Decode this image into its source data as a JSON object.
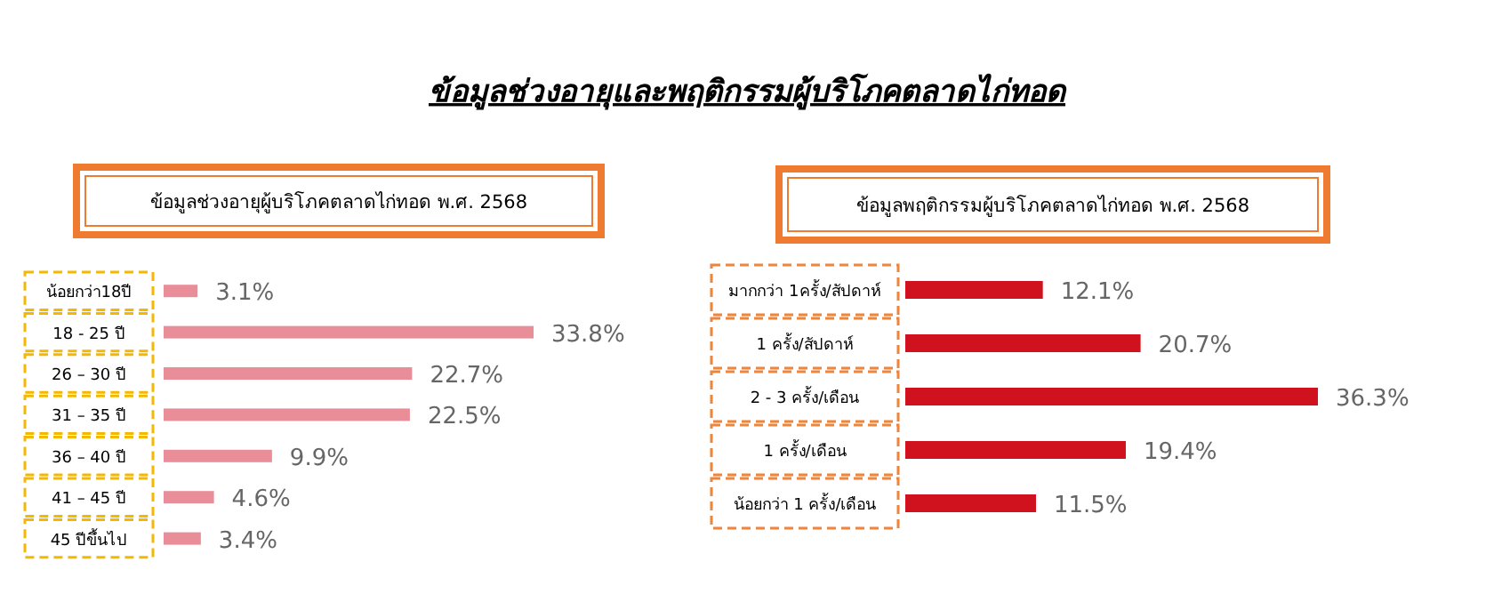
{
  "chart_data": [
    {
      "type": "other",
      "title": "ข้อมูลช่วงอายุและพฤติกรรมผู้บริโภคตลาดไก่ทอด"
    },
    {
      "type": "bar",
      "orientation": "horizontal",
      "title": "ข้อมูลช่วงอายุผู้บริโภคตลาดไก่ทอด พ.ศ. 2568",
      "categories": [
        "น้อยกว่า18ปี",
        "18 - 25 ปี",
        "26 – 30 ปี",
        "31 – 35 ปี",
        "36 – 40 ปี",
        "41 – 45 ปี",
        "45 ปีขึ้นไป"
      ],
      "values": [
        3.1,
        33.8,
        22.7,
        22.5,
        9.9,
        4.6,
        3.4
      ],
      "value_labels": [
        "3.1%",
        "33.8%",
        "22.7%",
        "22.5%",
        "9.9%",
        "4.6%",
        "3.4%"
      ],
      "color": "#e98e98"
    },
    {
      "type": "bar",
      "orientation": "horizontal",
      "title": "ข้อมูลพฤติกรรมผู้บริโภคตลาดไก่ทอด พ.ศ. 2568",
      "categories": [
        "มากกว่า 1ครั้ง/สัปดาห์",
        "1 ครั้ง/สัปดาห์",
        "2 - 3 ครั้ง/เดือน",
        "1 ครั้ง/เดือน",
        "น้อยกว่า 1 ครั้ง/เดือน"
      ],
      "values": [
        12.1,
        20.7,
        36.3,
        19.4,
        11.5
      ],
      "value_labels": [
        "12.1%",
        "20.7%",
        "36.3%",
        "19.4%",
        "11.5%"
      ],
      "color": "#d0121e"
    }
  ]
}
